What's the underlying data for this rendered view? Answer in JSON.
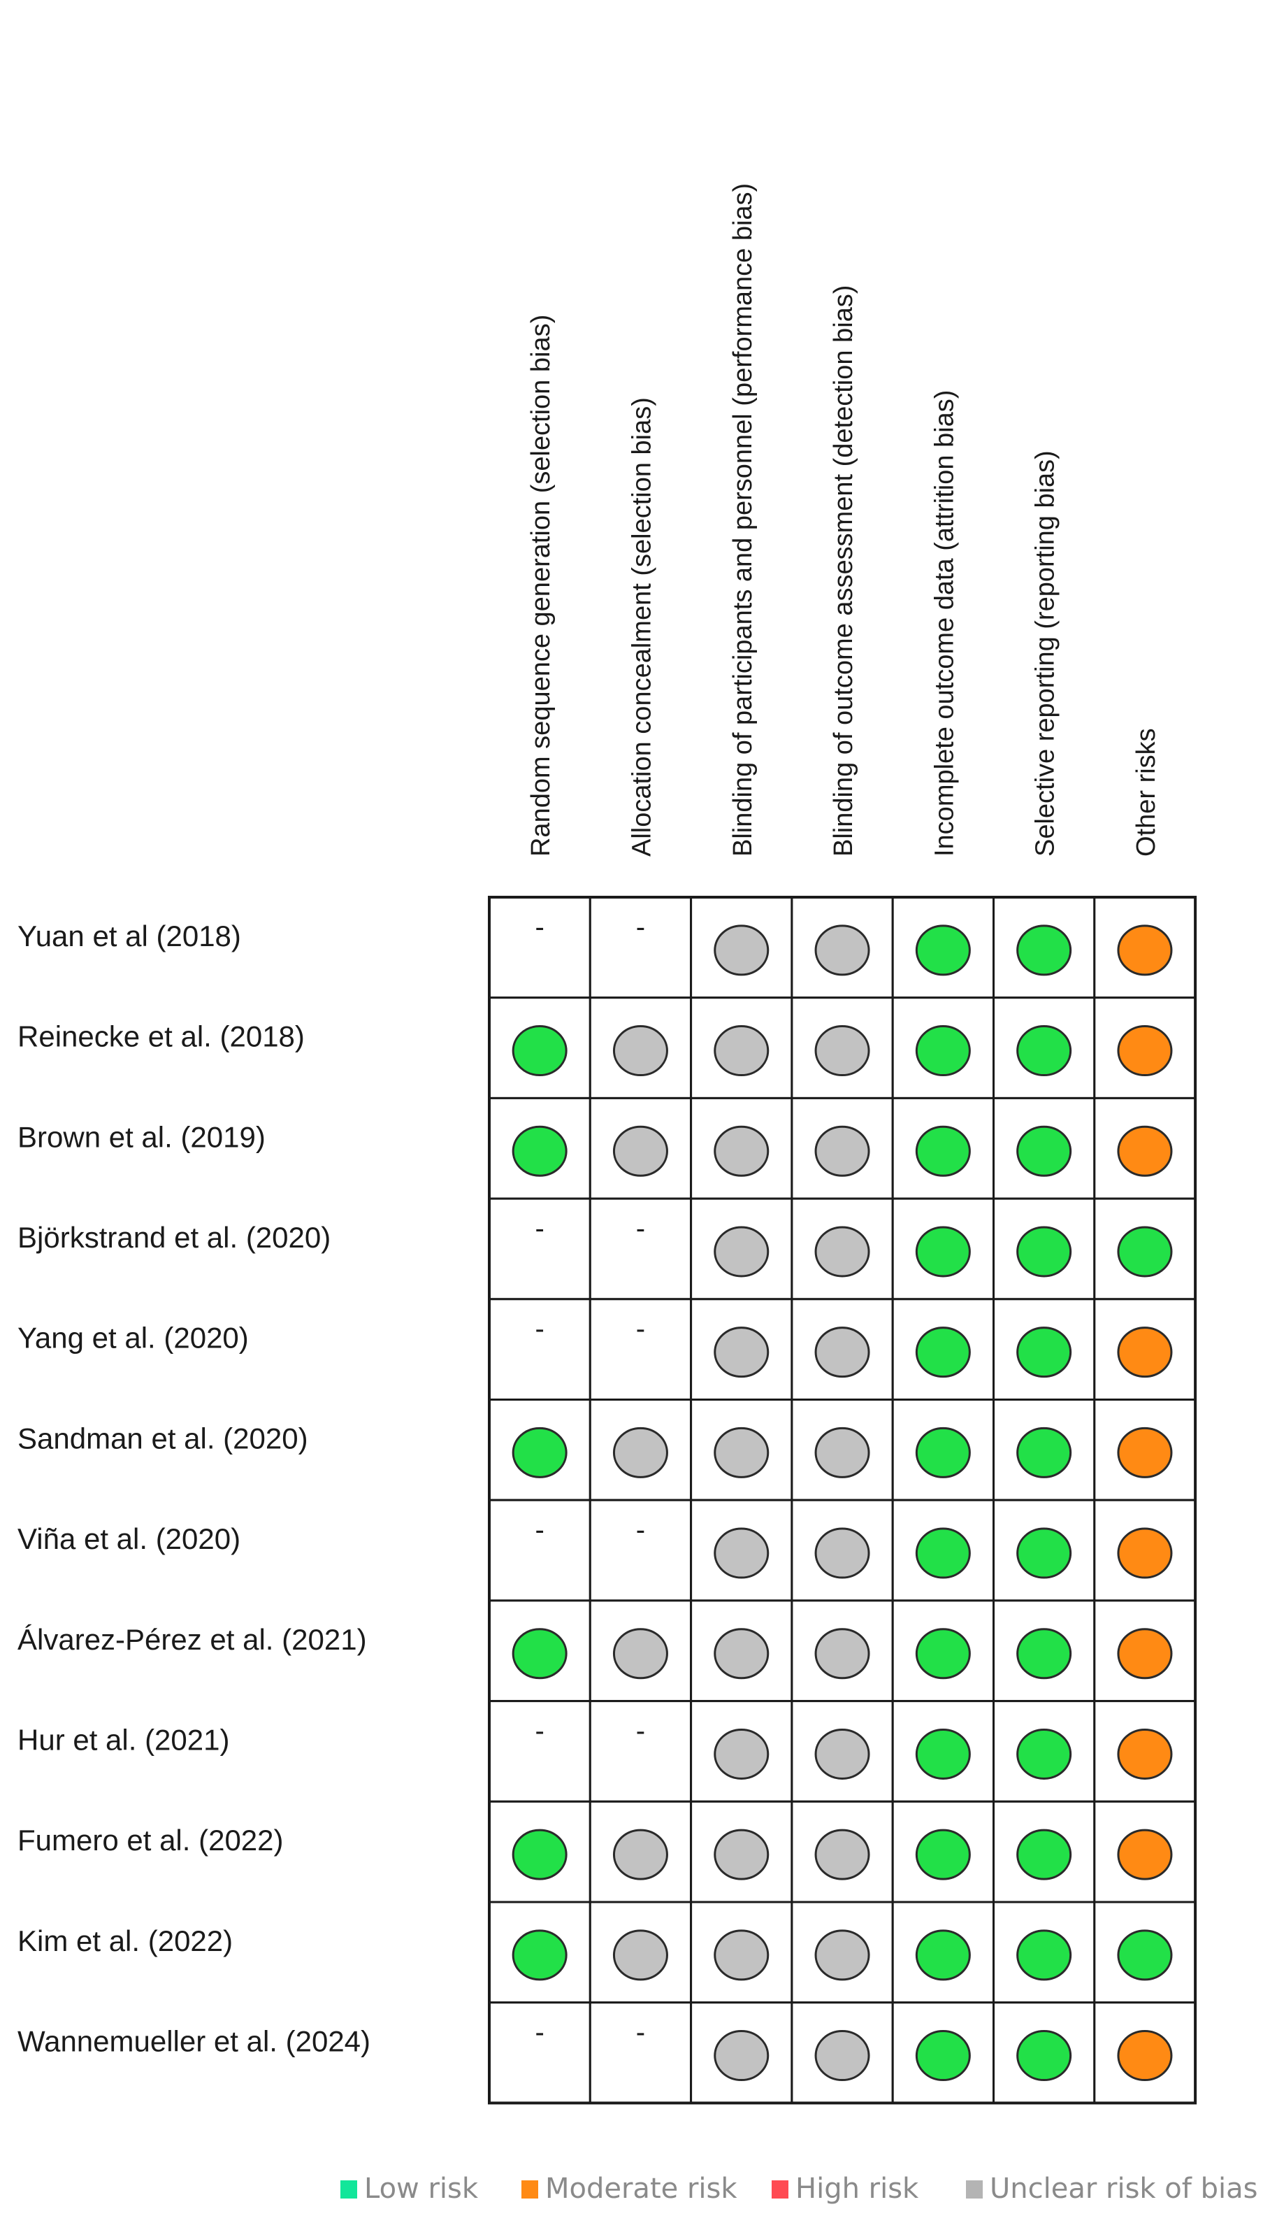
{
  "chart_data": {
    "type": "table",
    "domains": [
      "Random sequence generation (selection bias)",
      "Allocation concealment (selection bias)",
      "Blinding of participants and personnel (performance bias)",
      "Blinding of outcome assessment (detection bias)",
      "Incomplete outcome data (attrition bias)",
      "Selective reporting (reporting bias)",
      "Other risks"
    ],
    "studies": [
      {
        "name": "Yuan et al (2018)",
        "ratings": [
          "none",
          "none",
          "unclear",
          "unclear",
          "low",
          "low",
          "moderate"
        ]
      },
      {
        "name": "Reinecke et al. (2018)",
        "ratings": [
          "low",
          "unclear",
          "unclear",
          "unclear",
          "low",
          "low",
          "moderate"
        ]
      },
      {
        "name": "Brown et al. (2019)",
        "ratings": [
          "low",
          "unclear",
          "unclear",
          "unclear",
          "low",
          "low",
          "moderate"
        ]
      },
      {
        "name": "Björkstrand et al. (2020)",
        "ratings": [
          "none",
          "none",
          "unclear",
          "unclear",
          "low",
          "low",
          "low"
        ]
      },
      {
        "name": "Yang et al. (2020)",
        "ratings": [
          "none",
          "none",
          "unclear",
          "unclear",
          "low",
          "low",
          "moderate"
        ]
      },
      {
        "name": "Sandman et al. (2020)",
        "ratings": [
          "low",
          "unclear",
          "unclear",
          "unclear",
          "low",
          "low",
          "moderate"
        ]
      },
      {
        "name": "Viña et al. (2020)",
        "ratings": [
          "none",
          "none",
          "unclear",
          "unclear",
          "low",
          "low",
          "moderate"
        ]
      },
      {
        "name": "Álvarez-Pérez et al. (2021)",
        "ratings": [
          "low",
          "unclear",
          "unclear",
          "unclear",
          "low",
          "low",
          "moderate"
        ]
      },
      {
        "name": "Hur et al. (2021)",
        "ratings": [
          "none",
          "none",
          "unclear",
          "unclear",
          "low",
          "low",
          "moderate"
        ]
      },
      {
        "name": "Fumero et al. (2022)",
        "ratings": [
          "low",
          "unclear",
          "unclear",
          "unclear",
          "low",
          "low",
          "moderate"
        ]
      },
      {
        "name": "Kim et al. (2022)",
        "ratings": [
          "low",
          "unclear",
          "unclear",
          "unclear",
          "low",
          "low",
          "low"
        ]
      },
      {
        "name": "Wannemueller et al. (2024)",
        "ratings": [
          "none",
          "none",
          "unclear",
          "unclear",
          "low",
          "low",
          "moderate"
        ]
      }
    ],
    "none_symbol": "-",
    "legend": [
      {
        "key": "low",
        "label": "Low risk",
        "color": "#12e69a"
      },
      {
        "key": "moderate",
        "label": "Moderate risk",
        "color": "#ff8a14"
      },
      {
        "key": "high",
        "label": "High risk",
        "color": "#ff4a52"
      },
      {
        "key": "unclear",
        "label": "Unclear risk of bias",
        "color": "#b4b4b4"
      }
    ],
    "rating_colors": {
      "low": "#22e048",
      "unclear": "#c2c2c2",
      "moderate": "#ff8a14"
    }
  }
}
